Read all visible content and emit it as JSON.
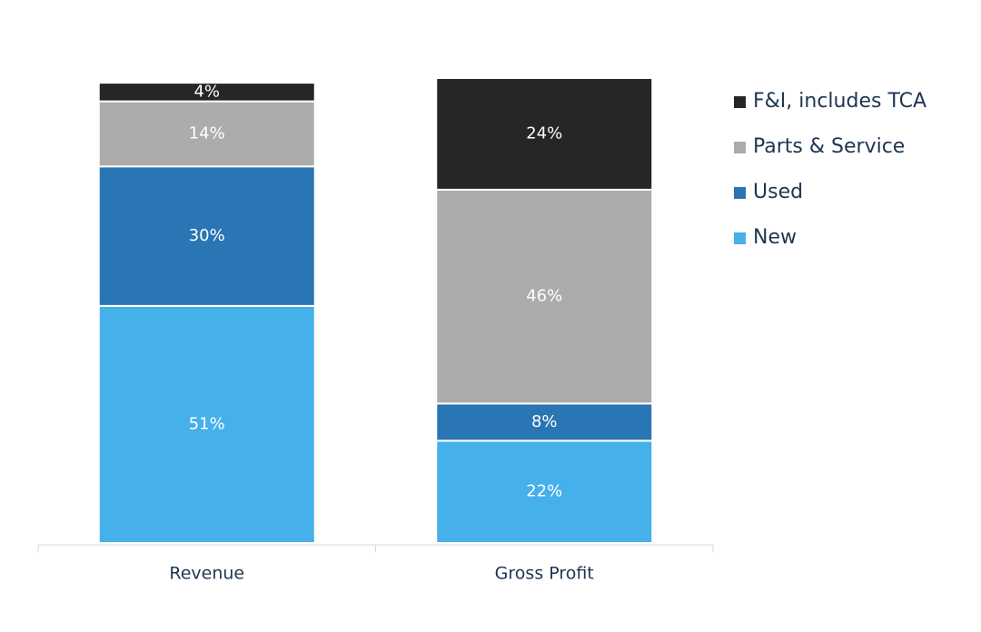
{
  "chart_data": {
    "type": "stacked-bar",
    "categories": [
      "Revenue",
      "Gross Profit"
    ],
    "series": [
      {
        "name": "New",
        "color": "#45b0ea",
        "values": [
          51,
          22
        ],
        "value_labels": [
          "51%",
          "22%"
        ]
      },
      {
        "name": "Used",
        "color": "#2a75b3",
        "values": [
          30,
          8
        ],
        "value_labels": [
          "30%",
          "8%"
        ]
      },
      {
        "name": "Parts & Service",
        "color": "#aeabab",
        "values": [
          14,
          46
        ],
        "value_labels": [
          "14%",
          "46%"
        ]
      },
      {
        "name": "F&I, includes TCA",
        "color": "#262626",
        "values": [
          4,
          24
        ],
        "value_labels": [
          "4%",
          "24%"
        ]
      }
    ],
    "ylim": [
      0,
      100
    ],
    "legend": "right"
  }
}
